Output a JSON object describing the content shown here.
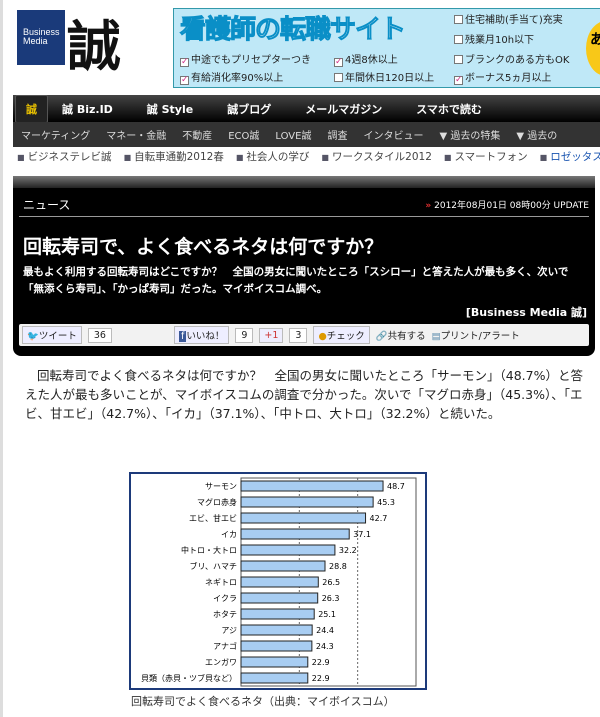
{
  "header": {
    "logo_text": "Business Media",
    "logo_kanji": "誠"
  },
  "ad": {
    "title": "看護師の転職サイト",
    "items": [
      {
        "label": "住宅補助(手当て)充実",
        "checked": false
      },
      {
        "label": "残業月10h以下",
        "checked": false
      },
      {
        "label": "ブランクのある方もOK",
        "checked": false
      },
      {
        "label": "中途でもプリセプターつき",
        "checked": true
      },
      {
        "label": "4週8休以上",
        "checked": true
      },
      {
        "label": "有給消化率90%以上",
        "checked": true
      },
      {
        "label": "年間休日120日以上",
        "checked": false
      },
      {
        "label": "ボーナス5ヵ月以上",
        "checked": true
      }
    ],
    "badge": "あ案"
  },
  "nav": [
    "誠",
    "誠 Biz.ID",
    "誠 Style",
    "誠ブログ",
    "メールマガジン",
    "スマホで読む"
  ],
  "subnav": [
    "マーケティング",
    "マネー・金融",
    "不動産",
    "ECO誠",
    "LOVE誠",
    "調査",
    "インタビュー",
    "▼ 過去の特集",
    "▼ 過去の"
  ],
  "topics": [
    "ビジネステレビ誠",
    "自転車通勤2012春",
    "社会人の学び",
    "ワークスタイル2012",
    "スマートフォン",
    "ロゼッタストー"
  ],
  "article": {
    "category": "ニュース",
    "update": "2012年08月01日 08時00分 UPDATE",
    "title": "回転寿司で、よく食べるネタは何ですか？",
    "lead": "最もよく利用する回転寿司はどこですか？　全国の男女に聞いたところ「スシロー」と答えた人が最も多く、次いで「無添くら寿司」、「かっぱ寿司」だった。マイボイスコム調べ。",
    "credit": "[Business Media 誠]",
    "share": {
      "tweet": "ツイート",
      "tweet_count": "36",
      "like": "いいね！",
      "like_count": "9",
      "gplus": "+1",
      "gplus_count": "3",
      "check": "チェック",
      "share": "共有する",
      "print": "プリント/アラート"
    }
  },
  "body": "回転寿司でよく食べるネタは何ですか？　全国の男女に聞いたところ「サーモン」（48.7%）と答えた人が最も多いことが、マイボイスコムの調査で分かった。次いで「マグロ赤身」（45.3%）、「エビ、甘エビ」（42.7%）、「イカ」（37.1%）、「中トロ、大トロ」（32.2%）と続いた。",
  "chart_data": {
    "type": "bar",
    "orientation": "horizontal",
    "categories": [
      "サーモン",
      "マグロ赤身",
      "エビ、甘エビ",
      "イカ",
      "中トロ・大トロ",
      "ブリ、ハマチ",
      "ネギトロ",
      "イクラ",
      "ホタテ",
      "アジ",
      "アナゴ",
      "エンガワ",
      "貝類（赤貝・ツブ貝など）"
    ],
    "values": [
      48.7,
      45.3,
      42.7,
      37.1,
      32.2,
      28.8,
      26.5,
      26.3,
      25.1,
      24.4,
      24.3,
      22.9,
      22.9
    ],
    "xlim": [
      0,
      60
    ],
    "gridlines": [
      20,
      40
    ],
    "bar_color": "#a8cdf2",
    "caption": "回転寿司でよく食べるネタ（出典：マイボイスコム）"
  }
}
